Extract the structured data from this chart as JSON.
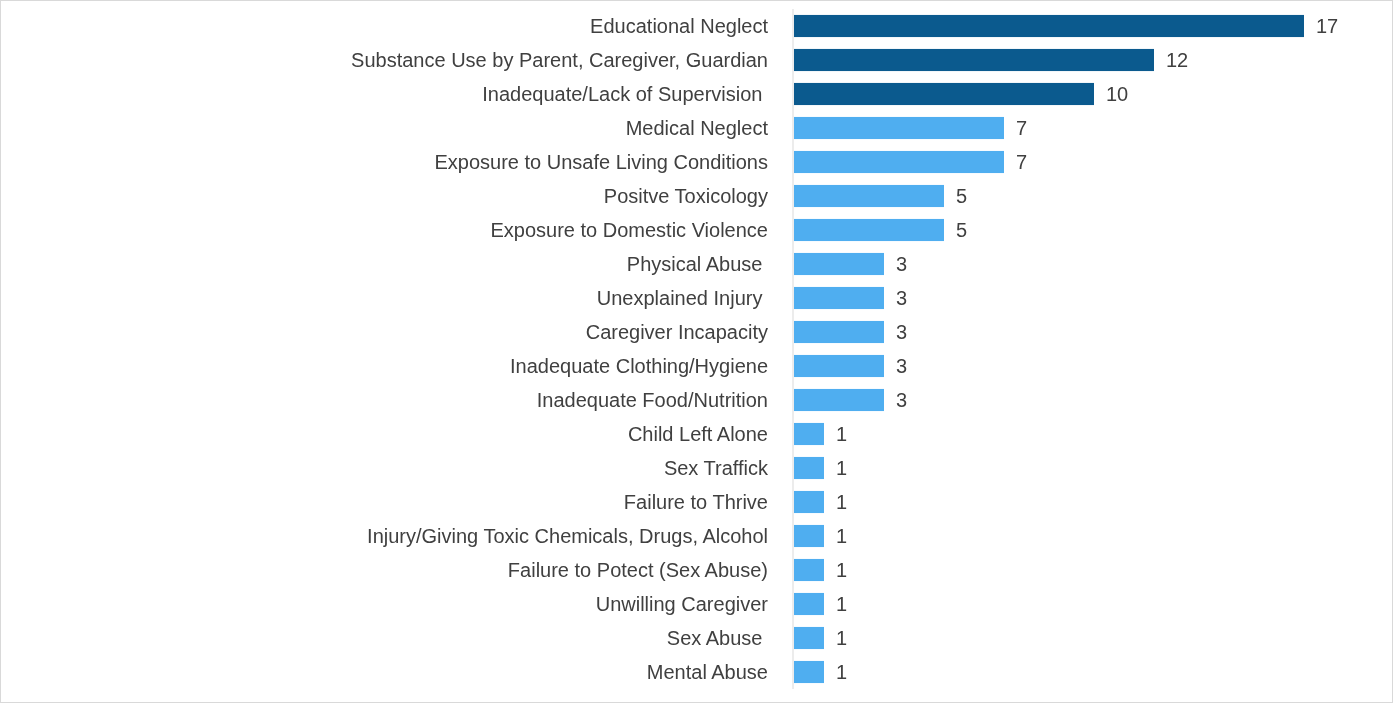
{
  "chart_data": {
    "type": "bar",
    "orientation": "horizontal",
    "data_labels": true,
    "categories": [
      "Educational Neglect",
      "Substance Use by Parent, Caregiver, Guardian",
      "Inadequate/Lack of Supervision ",
      "Medical Neglect",
      "Exposure to Unsafe Living Conditions",
      "Positve Toxicology",
      "Exposure to Domestic Violence",
      "Physical Abuse ",
      "Unexplained Injury ",
      "Caregiver Incapacity",
      "Inadequate Clothing/Hygiene",
      "Inadequate Food/Nutrition",
      "Child Left Alone",
      "Sex Traffick",
      "Failure to Thrive",
      "Injury/Giving Toxic Chemicals, Drugs, Alcohol",
      "Failure to Potect (Sex Abuse)",
      "Unwilling Caregiver",
      "Sex Abuse ",
      "Mental Abuse"
    ],
    "values": [
      17,
      12,
      10,
      7,
      7,
      5,
      5,
      3,
      3,
      3,
      3,
      3,
      1,
      1,
      1,
      1,
      1,
      1,
      1,
      1
    ],
    "colors": [
      "#0b5a8e",
      "#0b5a8e",
      "#0b5a8e",
      "#4faef0",
      "#4faef0",
      "#4faef0",
      "#4faef0",
      "#4faef0",
      "#4faef0",
      "#4faef0",
      "#4faef0",
      "#4faef0",
      "#4faef0",
      "#4faef0",
      "#4faef0",
      "#4faef0",
      "#4faef0",
      "#4faef0",
      "#4faef0",
      "#4faef0"
    ]
  }
}
